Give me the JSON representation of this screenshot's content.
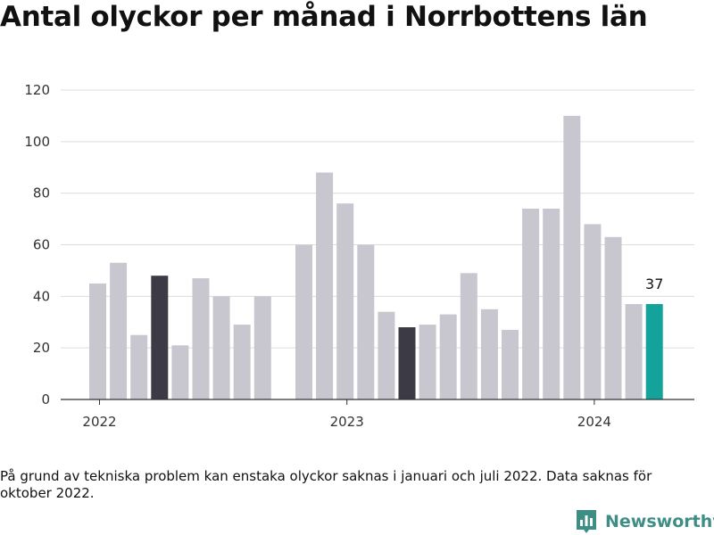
{
  "title": "Antal olyckor per månad i Norrbottens län",
  "chart_data": {
    "type": "bar",
    "title": "Antal olyckor per månad i Norrbottens län",
    "xlabel": "",
    "ylabel": "",
    "ylim": [
      0,
      120
    ],
    "yticks": [
      0,
      20,
      40,
      60,
      80,
      100,
      120
    ],
    "grid": true,
    "x": [
      "2022-01",
      "2022-02",
      "2022-03",
      "2022-04",
      "2022-05",
      "2022-06",
      "2022-07",
      "2022-08",
      "2022-09",
      "2022-10",
      "2022-11",
      "2022-12",
      "2023-01",
      "2023-02",
      "2023-03",
      "2023-04",
      "2023-05",
      "2023-06",
      "2023-07",
      "2023-08",
      "2023-09",
      "2023-10",
      "2023-11",
      "2023-12",
      "2024-01",
      "2024-02",
      "2024-03",
      "2024-04"
    ],
    "values": [
      45,
      53,
      25,
      48,
      21,
      47,
      40,
      29,
      40,
      null,
      60,
      88,
      76,
      60,
      34,
      28,
      29,
      33,
      49,
      35,
      27,
      74,
      74,
      110,
      68,
      63,
      37,
      37
    ],
    "highlight_dark": [
      "2022-04",
      "2023-04"
    ],
    "highlight_current": "2024-04",
    "xtick_labels": [
      {
        "label": "2022",
        "at": "2022-01"
      },
      {
        "label": "2023",
        "at": "2023-01"
      },
      {
        "label": "2024",
        "at": "2024-01"
      }
    ],
    "data_labels": [
      {
        "at": "2024-04",
        "text": "37"
      }
    ],
    "colors": {
      "bar": "#c8c7cf",
      "dark": "#3b3a45",
      "current": "#14a39a",
      "grid": "#dcdcdc",
      "axis": "#333333"
    }
  },
  "note": "På grund av tekniska problem kan enstaka olyckor saknas i januari och juli 2022. Data saknas för oktober 2022.",
  "brand": {
    "name": "Newsworthy",
    "icon": "newsworthy-logo-icon",
    "color": "#3f8e86"
  }
}
